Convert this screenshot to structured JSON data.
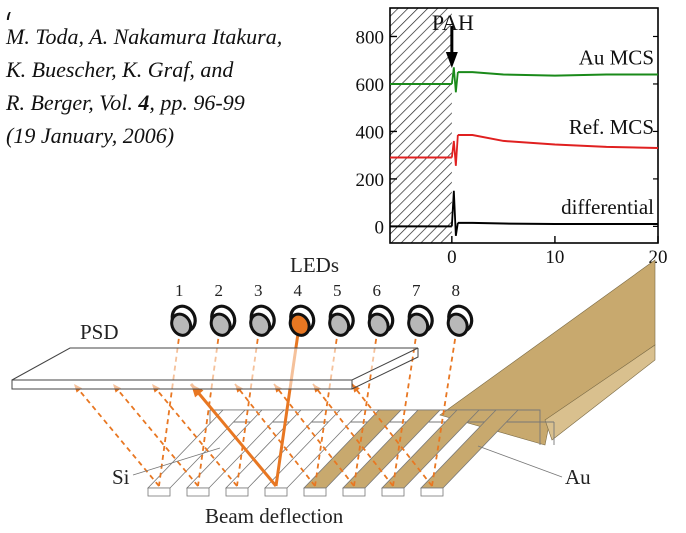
{
  "citation": {
    "line_partial": "(",
    "line1": "M. Toda, A. Nakamura Itakura,",
    "line2": "K. Buescher, K. Graf, and",
    "line3_before": "R. Berger, Vol. ",
    "line3_bold": "4",
    "line3_after": ", pp. 96-99",
    "line4": "(19 January, 2006)"
  },
  "chart_data": {
    "type": "line",
    "xlim": [
      -6,
      20
    ],
    "ylim": [
      -70,
      920
    ],
    "x_ticks": [
      0,
      10,
      20
    ],
    "y_ticks": [
      0,
      200,
      400,
      600,
      800
    ],
    "annotation": "PAH",
    "injection_x": 0,
    "series": [
      {
        "name": "Au MCS",
        "color": "#1a8a1a",
        "baseline_before": 600,
        "level_after": 640,
        "x": [
          0,
          2,
          5,
          10,
          15,
          20
        ],
        "y": [
          600,
          650,
          640,
          635,
          640,
          640
        ]
      },
      {
        "name": "Ref. MCS",
        "color": "#e02020",
        "baseline_before": 290,
        "level_after": 330,
        "x": [
          0,
          2,
          5,
          10,
          15,
          20
        ],
        "y": [
          290,
          385,
          360,
          345,
          335,
          330
        ]
      },
      {
        "name": "differential",
        "color": "#000000",
        "baseline_before": 0,
        "level_after": 10,
        "x": [
          0,
          2,
          5,
          10,
          15,
          20
        ],
        "y": [
          0,
          15,
          12,
          10,
          10,
          10
        ]
      }
    ]
  },
  "diagram": {
    "leds_label": "LEDs",
    "led_numbers": [
      "1",
      "2",
      "3",
      "4",
      "5",
      "6",
      "7",
      "8"
    ],
    "active_led": "4",
    "psd_label": "PSD",
    "si_label": "Si",
    "au_label": "Au",
    "caption": "Beam deflection",
    "colors": {
      "beam": "#e87722",
      "gold": "#c8a96e",
      "led_active": "#e87722",
      "led_inactive": "#b8b8b8"
    }
  }
}
